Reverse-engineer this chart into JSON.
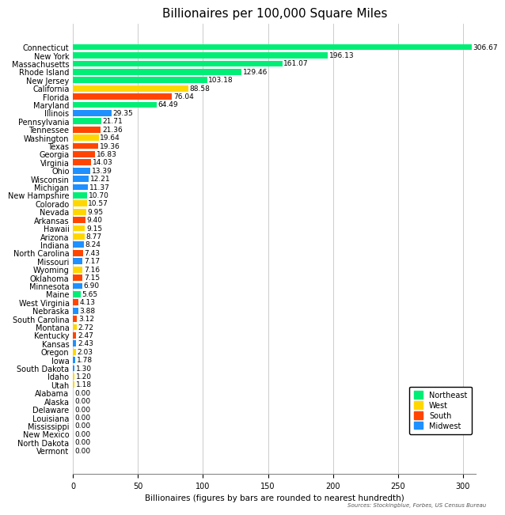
{
  "title": "Billionaires per 100,000 Square Miles",
  "xlabel": "Billionaires (figures by bars are rounded to nearest hundredth)",
  "footer": "Sources: Stockingblue, Forbes, US Census Bureau",
  "states": [
    "Connecticut",
    "New York",
    "Massachusetts",
    "Rhode Island",
    "New Jersey",
    "California",
    "Florida",
    "Maryland",
    "Illinois",
    "Pennsylvania",
    "Tennessee",
    "Washington",
    "Texas",
    "Georgia",
    "Virginia",
    "Ohio",
    "Wisconsin",
    "Michigan",
    "New Hampshire",
    "Colorado",
    "Nevada",
    "Arkansas",
    "Hawaii",
    "Arizona",
    "Indiana",
    "North Carolina",
    "Missouri",
    "Wyoming",
    "Oklahoma",
    "Minnesota",
    "Maine",
    "West Virginia",
    "Nebraska",
    "South Carolina",
    "Montana",
    "Kentucky",
    "Kansas",
    "Oregon",
    "Iowa",
    "South Dakota",
    "Idaho",
    "Utah",
    "Alabama",
    "Alaska",
    "Delaware",
    "Louisiana",
    "Mississippi",
    "New Mexico",
    "North Dakota",
    "Vermont"
  ],
  "values": [
    306.67,
    196.13,
    161.07,
    129.46,
    103.18,
    88.58,
    76.04,
    64.49,
    29.35,
    21.71,
    21.36,
    19.64,
    19.36,
    16.83,
    14.03,
    13.39,
    12.21,
    11.37,
    10.7,
    10.57,
    9.95,
    9.4,
    9.15,
    8.77,
    8.24,
    7.43,
    7.17,
    7.16,
    7.15,
    6.9,
    5.65,
    4.13,
    3.88,
    3.12,
    2.72,
    2.47,
    2.43,
    2.03,
    1.78,
    1.3,
    1.2,
    1.18,
    0.0,
    0.0,
    0.0,
    0.0,
    0.0,
    0.0,
    0.0,
    0.0
  ],
  "value_labels": [
    "306.67",
    "196.13",
    "161.07",
    "129.46",
    "103.18",
    "88.58",
    "76.04",
    "64.49",
    "29.35",
    "21.71",
    "21.36",
    "19.64",
    "19.36",
    "16.83",
    "14.03",
    "13.39",
    "12.21",
    "11.37",
    "10.70",
    "10.57",
    "9.95",
    "9.40",
    "9.15",
    "8.77",
    "8.24",
    "7.43",
    "7.17",
    "7.16",
    "7.15",
    "6.90",
    "5.65",
    "4.13",
    "3.88",
    "3.12",
    "2.72",
    "2.47",
    "2.43",
    "2.03",
    "1.78",
    "1.30",
    "1.20",
    "1.18",
    "0.00",
    "0.00",
    "0.00",
    "0.00",
    "0.00",
    "0.00",
    "0.00",
    "0.00"
  ],
  "regions": [
    "Northeast",
    "Northeast",
    "Northeast",
    "Northeast",
    "Northeast",
    "West",
    "South",
    "Northeast",
    "Midwest",
    "Northeast",
    "South",
    "West",
    "South",
    "South",
    "South",
    "Midwest",
    "Midwest",
    "Midwest",
    "Northeast",
    "West",
    "West",
    "South",
    "West",
    "West",
    "Midwest",
    "South",
    "Midwest",
    "West",
    "South",
    "Midwest",
    "Northeast",
    "South",
    "Midwest",
    "South",
    "West",
    "South",
    "Midwest",
    "West",
    "Midwest",
    "Midwest",
    "West",
    "West",
    "South",
    "West",
    "Northeast",
    "South",
    "South",
    "West",
    "Midwest",
    "Northeast"
  ],
  "region_colors": {
    "Northeast": "#00EE76",
    "West": "#FFD700",
    "South": "#FF4500",
    "Midwest": "#1E90FF"
  },
  "legend_order": [
    "Northeast",
    "West",
    "South",
    "Midwest"
  ],
  "xlim": [
    0,
    310
  ],
  "bg_color": "#FFFFFF",
  "grid_color": "#CCCCCC",
  "title_fontsize": 11,
  "label_fontsize": 7.5,
  "tick_fontsize": 7,
  "value_fontsize": 6.5
}
